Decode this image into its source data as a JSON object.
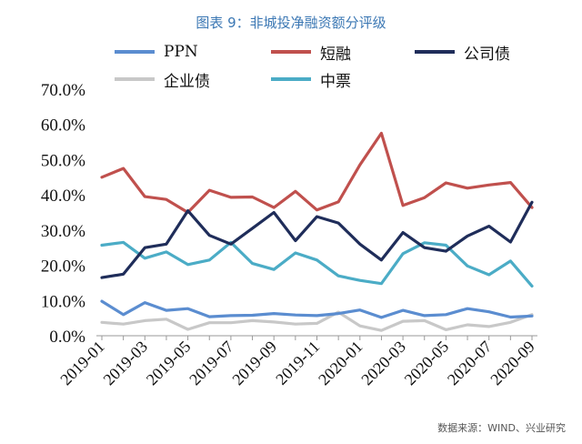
{
  "title": "图表 9：非城投净融资额分评级",
  "source": "数据来源：WIND、兴业研究",
  "chart_data": {
    "type": "line",
    "x": [
      "2019-01",
      "2019-02",
      "2019-03",
      "2019-04",
      "2019-05",
      "2019-06",
      "2019-07",
      "2019-08",
      "2019-09",
      "2019-10",
      "2019-11",
      "2019-12",
      "2020-01",
      "2020-02",
      "2020-03",
      "2020-04",
      "2020-05",
      "2020-06",
      "2020-07",
      "2020-08",
      "2020-09"
    ],
    "xticks": [
      "2019-01",
      "2019-03",
      "2019-05",
      "2019-07",
      "2019-09",
      "2019-11",
      "2020-01",
      "2020-03",
      "2020-05",
      "2020-07",
      "2020-09"
    ],
    "ylim": [
      0,
      70
    ],
    "yticks": [
      "0.0%",
      "10.0%",
      "20.0%",
      "30.0%",
      "40.0%",
      "50.0%",
      "60.0%",
      "70.0%"
    ],
    "series": [
      {
        "name": "PPN",
        "color": "#5B8DD0",
        "values": [
          9.8,
          6.0,
          9.4,
          7.2,
          7.7,
          5.4,
          5.7,
          5.8,
          6.3,
          5.9,
          5.7,
          6.3,
          7.3,
          5.2,
          7.2,
          5.7,
          6.0,
          7.7,
          6.8,
          5.3,
          5.6
        ]
      },
      {
        "name": "短融",
        "color": "#C0504D",
        "values": [
          45.0,
          47.5,
          39.5,
          38.7,
          35.0,
          41.3,
          39.3,
          39.4,
          36.4,
          41.0,
          35.7,
          38.0,
          48.5,
          57.5,
          37.0,
          39.2,
          43.4,
          41.9,
          42.8,
          43.5,
          36.4
        ]
      },
      {
        "name": "公司债",
        "color": "#1F2D5A",
        "values": [
          16.5,
          17.5,
          25.0,
          26.0,
          35.5,
          28.5,
          26.0,
          30.5,
          35.0,
          27.0,
          33.8,
          32.0,
          26.0,
          21.5,
          29.3,
          25.0,
          24.0,
          28.3,
          31.1,
          26.6,
          37.9
        ]
      },
      {
        "name": "企业债",
        "color": "#C8C8C8",
        "values": [
          3.8,
          3.3,
          4.3,
          4.7,
          1.8,
          3.7,
          3.7,
          4.3,
          3.9,
          3.3,
          3.5,
          6.7,
          2.8,
          1.5,
          4.1,
          4.3,
          1.7,
          3.1,
          2.6,
          3.8,
          6.0
        ]
      },
      {
        "name": "中票",
        "color": "#4BACC6",
        "values": [
          25.7,
          26.5,
          22.0,
          23.8,
          20.2,
          21.5,
          26.5,
          20.5,
          18.8,
          23.5,
          21.5,
          17.0,
          15.7,
          14.8,
          23.3,
          26.4,
          25.7,
          19.8,
          17.3,
          21.2,
          14.1
        ]
      }
    ],
    "legend": "top",
    "grid": false
  }
}
